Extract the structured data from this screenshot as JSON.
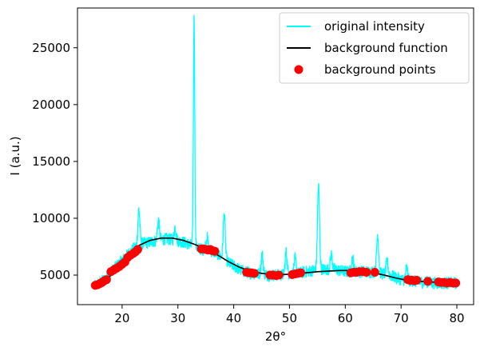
{
  "chart_data": {
    "type": "line",
    "xlabel": "2θ°",
    "ylabel": "I (a.u.)",
    "xlim": [
      12,
      83
    ],
    "ylim": [
      2400,
      28500
    ],
    "xticks": [
      20,
      30,
      40,
      50,
      60,
      70,
      80
    ],
    "yticks": [
      5000,
      10000,
      15000,
      20000,
      25000
    ],
    "grid": false,
    "legend_position": "top-right",
    "colors": {
      "intensity": "#00ffff",
      "background_function": "#000000",
      "background_points": "#ff0000"
    },
    "series": [
      {
        "name": "original intensity",
        "type": "line",
        "baseline": [
          [
            15,
            4000
          ],
          [
            16,
            4300
          ],
          [
            17,
            4700
          ],
          [
            18,
            5300
          ],
          [
            19,
            5800
          ],
          [
            20,
            6300
          ],
          [
            21,
            6800
          ],
          [
            22,
            7300
          ],
          [
            23,
            7700
          ],
          [
            24,
            7800
          ],
          [
            25,
            7900
          ],
          [
            26,
            8000
          ],
          [
            27,
            8100
          ],
          [
            28,
            8200
          ],
          [
            29,
            8100
          ],
          [
            30,
            8000
          ],
          [
            31,
            7900
          ],
          [
            32,
            7700
          ],
          [
            33,
            7500
          ],
          [
            34,
            7300
          ],
          [
            35,
            7200
          ],
          [
            36,
            7100
          ],
          [
            37,
            6900
          ],
          [
            38,
            6500
          ],
          [
            39,
            6100
          ],
          [
            40,
            5800
          ],
          [
            41,
            5500
          ],
          [
            42,
            5300
          ],
          [
            43,
            5200
          ],
          [
            44,
            5100
          ],
          [
            45,
            5100
          ],
          [
            46,
            5000
          ],
          [
            47,
            5000
          ],
          [
            48,
            5000
          ],
          [
            49,
            5000
          ],
          [
            50,
            5100
          ],
          [
            51,
            5100
          ],
          [
            52,
            5200
          ],
          [
            53,
            5300
          ],
          [
            54,
            5400
          ],
          [
            55,
            5500
          ],
          [
            56,
            5500
          ],
          [
            57,
            5500
          ],
          [
            58,
            5500
          ],
          [
            59,
            5400
          ],
          [
            60,
            5300
          ],
          [
            61,
            5300
          ],
          [
            62,
            5300
          ],
          [
            63,
            5300
          ],
          [
            64,
            5300
          ],
          [
            65,
            5300
          ],
          [
            66,
            5200
          ],
          [
            67,
            5100
          ],
          [
            68,
            5000
          ],
          [
            69,
            4800
          ],
          [
            70,
            4600
          ],
          [
            71,
            4500
          ],
          [
            72,
            4500
          ],
          [
            73,
            4400
          ],
          [
            74,
            4400
          ],
          [
            75,
            4400
          ],
          [
            76,
            4300
          ],
          [
            77,
            4300
          ],
          [
            78,
            4300
          ],
          [
            79,
            4300
          ],
          [
            80,
            4300
          ]
        ],
        "peaks": [
          [
            23.0,
            10800
          ],
          [
            26.5,
            9800
          ],
          [
            29.5,
            9200
          ],
          [
            32.9,
            27800
          ],
          [
            35.2,
            8400
          ],
          [
            38.3,
            10400
          ],
          [
            45.1,
            6800
          ],
          [
            49.4,
            7000
          ],
          [
            51.0,
            6400
          ],
          [
            55.2,
            12900
          ],
          [
            57.5,
            6800
          ],
          [
            61.3,
            6500
          ],
          [
            65.8,
            8600
          ],
          [
            67.5,
            6200
          ],
          [
            71.0,
            5600
          ]
        ]
      },
      {
        "name": "background function",
        "type": "line",
        "x": [
          15,
          17,
          19,
          21,
          23,
          25,
          27,
          29,
          31,
          33,
          35,
          37,
          39,
          41,
          43,
          45,
          47,
          49,
          51,
          53,
          55,
          57,
          59,
          61,
          63,
          65,
          67,
          69,
          71,
          73,
          75,
          77,
          79
        ],
        "y": [
          4050,
          4500,
          5500,
          6500,
          7600,
          8050,
          8250,
          8250,
          8050,
          7700,
          7300,
          6800,
          6200,
          5700,
          5350,
          5150,
          5050,
          5050,
          5100,
          5200,
          5300,
          5350,
          5400,
          5400,
          5350,
          5200,
          5000,
          4750,
          4550,
          4450,
          4400,
          4350,
          4300
        ]
      },
      {
        "name": "background points",
        "type": "scatter",
        "x": [
          15.2,
          15.6,
          16.0,
          16.4,
          16.8,
          17.2,
          18.0,
          18.5,
          19.0,
          19.5,
          20.0,
          20.5,
          21.0,
          21.5,
          22.0,
          22.4,
          22.8,
          34.2,
          34.6,
          35.0,
          35.4,
          35.8,
          36.2,
          36.6,
          42.3,
          42.8,
          43.2,
          43.7,
          46.5,
          47.0,
          47.6,
          48.1,
          50.5,
          51.0,
          51.5,
          52.0,
          61.0,
          61.5,
          62.0,
          62.5,
          63.2,
          63.8,
          65.3,
          71.2,
          71.6,
          72.0,
          72.4,
          72.8,
          74.8,
          76.7,
          77.2,
          77.7,
          78.2,
          78.8,
          79.3,
          79.8
        ],
        "y": [
          4100,
          4150,
          4250,
          4350,
          4500,
          4600,
          5300,
          5450,
          5600,
          5750,
          5950,
          6150,
          6550,
          6750,
          6900,
          7050,
          7250,
          7300,
          7300,
          7250,
          7200,
          7250,
          7150,
          7100,
          5250,
          5200,
          5200,
          5150,
          5000,
          5000,
          4950,
          5000,
          5050,
          5100,
          5150,
          5200,
          5200,
          5250,
          5250,
          5300,
          5300,
          5250,
          5250,
          4600,
          4550,
          4550,
          4500,
          4550,
          4450,
          4400,
          4350,
          4350,
          4300,
          4350,
          4300,
          4300
        ]
      }
    ]
  }
}
